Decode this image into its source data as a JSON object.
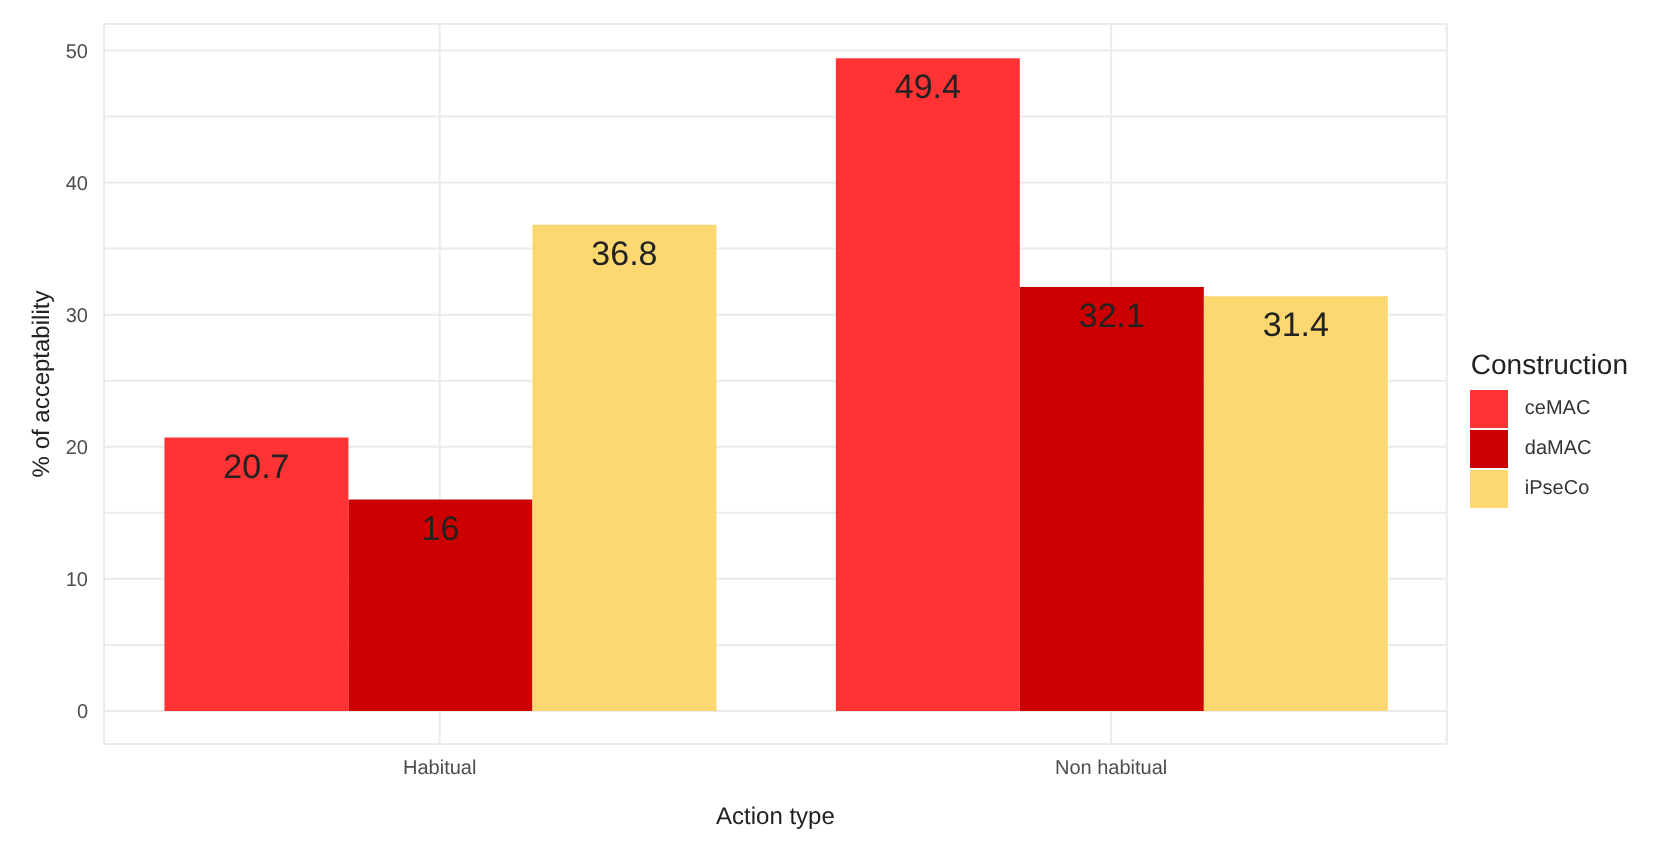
{
  "chart_data": {
    "type": "bar",
    "xlabel": "Action type",
    "ylabel": "% of acceptability",
    "legend_title": "Construction",
    "categories": [
      "Habitual",
      "Non habitual"
    ],
    "series": [
      {
        "name": "ceMAC",
        "color": "#ff3333",
        "values": [
          20.7,
          49.4
        ]
      },
      {
        "name": "daMAC",
        "color": "#cc0000",
        "values": [
          16,
          32.1
        ]
      },
      {
        "name": "iPseCo",
        "color": "#fdd870",
        "values": [
          36.8,
          31.4
        ]
      }
    ],
    "ylim": [
      -2.5,
      52
    ],
    "yticks": [
      0,
      {
        "value": 5,
        "label": null
      },
      10,
      {
        "value": 15,
        "label": null
      },
      20,
      {
        "value": 25,
        "label": null
      },
      30,
      {
        "value": 35,
        "label": null
      },
      40,
      {
        "value": 45,
        "label": null
      },
      50
    ],
    "grid": true,
    "legend": "right",
    "data_labels": true
  }
}
